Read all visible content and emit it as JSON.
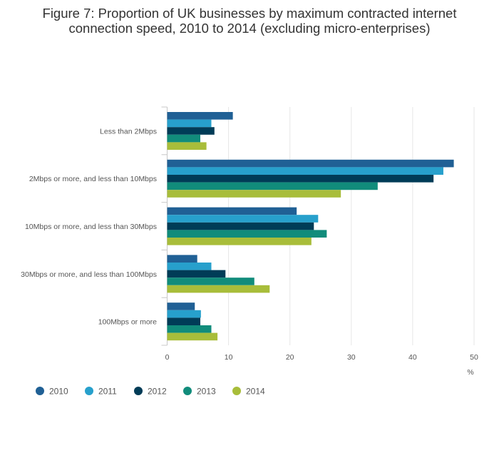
{
  "chart_data": {
    "type": "bar",
    "orientation": "horizontal",
    "title_lines": [
      "Figure 7: Proportion of UK businesses by maximum contracted internet",
      "connection speed, 2010 to 2014 (excluding micro-enterprises)"
    ],
    "categories": [
      "Less than 2Mbps",
      "2Mbps or more, and less than 10Mbps",
      "10Mbps or more, and less than 30Mbps",
      "30Mbps or more, and less than 100Mbps",
      "100Mbps or more"
    ],
    "series": [
      {
        "name": "2010",
        "color": "#206095",
        "values": [
          10.7,
          46.7,
          21.1,
          4.9,
          4.5
        ]
      },
      {
        "name": "2011",
        "color": "#27a0cc",
        "values": [
          7.2,
          45.0,
          24.6,
          7.2,
          5.5
        ]
      },
      {
        "name": "2012",
        "color": "#003c57",
        "values": [
          7.7,
          43.4,
          23.9,
          9.5,
          5.4
        ]
      },
      {
        "name": "2013",
        "color": "#118c7b",
        "values": [
          5.4,
          34.3,
          26.0,
          14.2,
          7.2
        ]
      },
      {
        "name": "2014",
        "color": "#a8bd3a",
        "values": [
          6.4,
          28.3,
          23.5,
          16.7,
          8.2
        ]
      }
    ],
    "x_ticks": [
      0,
      10,
      20,
      30,
      40,
      50
    ],
    "xlim": [
      0,
      50
    ],
    "xunit": "%",
    "grid": true,
    "legend_position": "bottom-left"
  }
}
